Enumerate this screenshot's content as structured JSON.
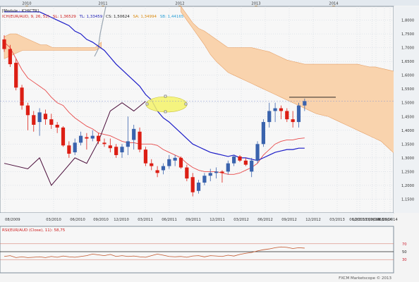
{
  "colors": {
    "background": "#f4f4f4",
    "grid": "#c8d2dc",
    "candle_up": "#3a63ad",
    "candle_down": "#dc1e14",
    "cloud_fill": "#f9d3ad",
    "cloud_edge": "#e6a26a",
    "tenkan": "#e84a4a",
    "kijun": "#1c1cc8",
    "chikou": "#4a0d3a",
    "senkou_a_text": "#d98a10",
    "senkou_b_text": "#2a9fd6",
    "rsi_line": "#c2552a",
    "rsi_level": "#d26c5a",
    "highlight": "#f5f36a"
  },
  "main_legend": {
    "module": "[Module : ICHICTR]",
    "indicator": "ICH(EUR/AUD, 9, 26, 52)",
    "sl": "SL: 1,36529",
    "tl": "TL: 1,33459",
    "cs": "CS: 1,50624",
    "sa": "SA: 1,34994",
    "sb": "SB: 1,44165"
  },
  "rsi_legend": "RSI(EUR/AUD (Close), 11): 58,75",
  "watermark": "FXCM Marketscope © 2013",
  "current_price_label": "1,50624",
  "chart_data": [
    {
      "type": "candlestick",
      "instrument": "EUR/AUD",
      "ylim": [
        1.1,
        1.85
      ],
      "y_ticks": [
        "1,8000",
        "1,7500",
        "1,7000",
        "1,6500",
        "1,6000",
        "1,5500",
        "1,5000",
        "1,4500",
        "1,4000",
        "1,3500",
        "1,3000",
        "1,2500",
        "1,2000",
        "1,1500"
      ],
      "x_ticks": [
        "08/2009",
        "03/2010",
        "06/2010",
        "09/2010",
        "12/2010",
        "03/2011",
        "06/2011",
        "09/2011",
        "12/2011",
        "03/2012",
        "06/2012",
        "09/2012",
        "12/2012",
        "03/2013",
        "06/2013",
        "09/2013",
        "12/2013",
        "03/2014",
        "06/2014",
        "09/2014"
      ],
      "year_labels": [
        "2010",
        "2011",
        "2012",
        "2013",
        "2014"
      ],
      "candles": [
        {
          "o": 1.73,
          "h": 1.745,
          "l": 1.685,
          "c": 1.695
        },
        {
          "o": 1.695,
          "h": 1.71,
          "l": 1.63,
          "c": 1.64
        },
        {
          "o": 1.645,
          "h": 1.66,
          "l": 1.545,
          "c": 1.555
        },
        {
          "o": 1.555,
          "h": 1.565,
          "l": 1.475,
          "c": 1.49
        },
        {
          "o": 1.49,
          "h": 1.5,
          "l": 1.4,
          "c": 1.455
        },
        {
          "o": 1.455,
          "h": 1.47,
          "l": 1.395,
          "c": 1.42
        },
        {
          "o": 1.43,
          "h": 1.48,
          "l": 1.38,
          "c": 1.465
        },
        {
          "o": 1.46,
          "h": 1.475,
          "l": 1.42,
          "c": 1.44
        },
        {
          "o": 1.44,
          "h": 1.46,
          "l": 1.405,
          "c": 1.42
        },
        {
          "o": 1.42,
          "h": 1.43,
          "l": 1.39,
          "c": 1.41
        },
        {
          "o": 1.41,
          "h": 1.415,
          "l": 1.34,
          "c": 1.345
        },
        {
          "o": 1.345,
          "h": 1.36,
          "l": 1.3,
          "c": 1.315
        },
        {
          "o": 1.32,
          "h": 1.37,
          "l": 1.31,
          "c": 1.355
        },
        {
          "o": 1.355,
          "h": 1.395,
          "l": 1.345,
          "c": 1.38
        },
        {
          "o": 1.375,
          "h": 1.39,
          "l": 1.33,
          "c": 1.37
        },
        {
          "o": 1.37,
          "h": 1.4,
          "l": 1.36,
          "c": 1.38
        },
        {
          "o": 1.38,
          "h": 1.39,
          "l": 1.35,
          "c": 1.36
        },
        {
          "o": 1.355,
          "h": 1.37,
          "l": 1.34,
          "c": 1.35
        },
        {
          "o": 1.345,
          "h": 1.37,
          "l": 1.32,
          "c": 1.335
        },
        {
          "o": 1.34,
          "h": 1.35,
          "l": 1.3,
          "c": 1.31
        },
        {
          "o": 1.32,
          "h": 1.35,
          "l": 1.3,
          "c": 1.34
        },
        {
          "o": 1.34,
          "h": 1.45,
          "l": 1.31,
          "c": 1.36
        },
        {
          "o": 1.365,
          "h": 1.42,
          "l": 1.33,
          "c": 1.405
        },
        {
          "o": 1.395,
          "h": 1.41,
          "l": 1.32,
          "c": 1.33
        },
        {
          "o": 1.33,
          "h": 1.34,
          "l": 1.27,
          "c": 1.28
        },
        {
          "o": 1.28,
          "h": 1.295,
          "l": 1.255,
          "c": 1.27
        },
        {
          "o": 1.255,
          "h": 1.27,
          "l": 1.23,
          "c": 1.245
        },
        {
          "o": 1.255,
          "h": 1.28,
          "l": 1.24,
          "c": 1.27
        },
        {
          "o": 1.27,
          "h": 1.31,
          "l": 1.26,
          "c": 1.295
        },
        {
          "o": 1.29,
          "h": 1.31,
          "l": 1.27,
          "c": 1.3
        },
        {
          "o": 1.3,
          "h": 1.305,
          "l": 1.26,
          "c": 1.265
        },
        {
          "o": 1.265,
          "h": 1.275,
          "l": 1.215,
          "c": 1.225
        },
        {
          "o": 1.23,
          "h": 1.245,
          "l": 1.16,
          "c": 1.175
        },
        {
          "o": 1.18,
          "h": 1.22,
          "l": 1.17,
          "c": 1.21
        },
        {
          "o": 1.21,
          "h": 1.245,
          "l": 1.2,
          "c": 1.235
        },
        {
          "o": 1.235,
          "h": 1.26,
          "l": 1.215,
          "c": 1.245
        },
        {
          "o": 1.245,
          "h": 1.265,
          "l": 1.225,
          "c": 1.25
        },
        {
          "o": 1.25,
          "h": 1.255,
          "l": 1.21,
          "c": 1.245
        },
        {
          "o": 1.25,
          "h": 1.29,
          "l": 1.24,
          "c": 1.28
        },
        {
          "o": 1.28,
          "h": 1.31,
          "l": 1.27,
          "c": 1.305
        },
        {
          "o": 1.305,
          "h": 1.31,
          "l": 1.285,
          "c": 1.29
        },
        {
          "o": 1.29,
          "h": 1.3,
          "l": 1.27,
          "c": 1.275
        },
        {
          "o": 1.25,
          "h": 1.3,
          "l": 1.23,
          "c": 1.29
        },
        {
          "o": 1.29,
          "h": 1.36,
          "l": 1.28,
          "c": 1.35
        },
        {
          "o": 1.35,
          "h": 1.44,
          "l": 1.34,
          "c": 1.43
        },
        {
          "o": 1.43,
          "h": 1.5,
          "l": 1.41,
          "c": 1.47
        },
        {
          "o": 1.47,
          "h": 1.5,
          "l": 1.43,
          "c": 1.48
        },
        {
          "o": 1.48,
          "h": 1.49,
          "l": 1.44,
          "c": 1.47
        },
        {
          "o": 1.47,
          "h": 1.48,
          "l": 1.43,
          "c": 1.44
        },
        {
          "o": 1.44,
          "h": 1.47,
          "l": 1.41,
          "c": 1.43
        },
        {
          "o": 1.43,
          "h": 1.5,
          "l": 1.41,
          "c": 1.49
        },
        {
          "o": 1.49,
          "h": 1.515,
          "l": 1.47,
          "c": 1.506
        }
      ],
      "series": [
        {
          "key": "tenkan",
          "values": [
            1.72,
            1.7,
            1.66,
            1.62,
            1.59,
            1.575,
            1.56,
            1.545,
            1.52,
            1.5,
            1.49,
            1.465,
            1.445,
            1.43,
            1.415,
            1.405,
            1.39,
            1.385,
            1.38,
            1.37,
            1.36,
            1.355,
            1.355,
            1.35,
            1.35,
            1.35,
            1.345,
            1.33,
            1.32,
            1.31,
            1.3,
            1.28,
            1.265,
            1.255,
            1.25,
            1.25,
            1.25,
            1.245,
            1.24,
            1.24,
            1.245,
            1.255,
            1.265,
            1.28,
            1.31,
            1.33,
            1.35,
            1.36,
            1.365,
            1.365,
            1.37,
            1.372
          ]
        },
        {
          "key": "kijun",
          "values": [
            1.83,
            1.83,
            1.83,
            1.83,
            1.83,
            1.83,
            1.83,
            1.82,
            1.81,
            1.8,
            1.79,
            1.78,
            1.76,
            1.75,
            1.73,
            1.72,
            1.705,
            1.69,
            1.665,
            1.64,
            1.62,
            1.6,
            1.58,
            1.56,
            1.53,
            1.51,
            1.47,
            1.445,
            1.43,
            1.41,
            1.39,
            1.37,
            1.35,
            1.34,
            1.33,
            1.32,
            1.315,
            1.31,
            1.305,
            1.31,
            1.3,
            1.3,
            1.295,
            1.29,
            1.3,
            1.31,
            1.32,
            1.325,
            1.33,
            1.33,
            1.335,
            1.335
          ]
        },
        {
          "key": "chikou",
          "values": [
            null,
            null,
            null,
            null,
            null,
            null,
            null,
            null,
            null,
            null,
            null,
            null,
            null,
            null,
            null,
            null,
            null,
            null,
            null,
            null,
            null,
            null,
            null,
            null,
            null,
            null,
            null,
            null,
            null,
            null,
            null,
            null,
            null,
            null,
            null,
            null,
            null,
            null,
            null,
            null,
            null,
            null,
            null,
            null,
            null,
            null,
            null,
            null,
            null,
            null,
            null,
            null
          ]
        }
      ],
      "chikou_points": [
        [
          0,
          1.28
        ],
        [
          4,
          1.26
        ],
        [
          6,
          1.3
        ],
        [
          8,
          1.2
        ],
        [
          10,
          1.25
        ],
        [
          12,
          1.3
        ],
        [
          14,
          1.28
        ],
        [
          16,
          1.36
        ],
        [
          18,
          1.47
        ],
        [
          20,
          1.5
        ],
        [
          22,
          1.47
        ],
        [
          24,
          1.505
        ]
      ],
      "cloud": {
        "start_index": 22,
        "upper": [
          1.85,
          1.82,
          1.79,
          1.77,
          1.76,
          1.745,
          1.73,
          1.715,
          1.7,
          1.7,
          1.7,
          1.7,
          1.7,
          1.695,
          1.69,
          1.685,
          1.675,
          1.665,
          1.655,
          1.65,
          1.645,
          1.64,
          1.64,
          1.64,
          1.64,
          1.64,
          1.64,
          1.64,
          1.64,
          1.64,
          1.64,
          1.635,
          1.63,
          1.63,
          1.625,
          1.62,
          1.615,
          1.61,
          1.6,
          1.58
        ],
        "lower": [
          1.83,
          1.8,
          1.77,
          1.74,
          1.71,
          1.675,
          1.65,
          1.63,
          1.61,
          1.6,
          1.59,
          1.58,
          1.57,
          1.56,
          1.55,
          1.54,
          1.53,
          1.52,
          1.51,
          1.5,
          1.49,
          1.48,
          1.47,
          1.46,
          1.455,
          1.45,
          1.44,
          1.43,
          1.42,
          1.41,
          1.4,
          1.39,
          1.38,
          1.37,
          1.36,
          1.34,
          1.32,
          1.31,
          1.3,
          1.295
        ]
      },
      "left_cloud": {
        "upper": [
          1.74,
          1.75,
          1.75,
          1.74,
          1.73,
          1.72,
          1.71,
          1.71,
          1.7,
          1.7,
          1.7,
          1.7,
          1.7,
          1.7,
          1.7,
          1.7,
          1.72
        ],
        "lower": [
          1.66,
          1.67,
          1.68,
          1.69,
          1.69,
          1.69,
          1.69,
          1.69,
          1.69,
          1.69,
          1.69,
          1.69,
          1.69,
          1.69,
          1.69,
          1.69,
          1.7
        ]
      }
    },
    {
      "type": "line",
      "title": "RSI(EUR/AUD (Close), 11): 58,75",
      "ylim": [
        0,
        100
      ],
      "levels": [
        30,
        50,
        70
      ],
      "y_ticks": [
        "70",
        "50",
        "30"
      ],
      "values": [
        38,
        40,
        35,
        37,
        35,
        36,
        37,
        35,
        38,
        36,
        39,
        37,
        36,
        38,
        40,
        44,
        42,
        40,
        43,
        38,
        40,
        38,
        39,
        37,
        36,
        40,
        44,
        41,
        38,
        37,
        38,
        36,
        39,
        40,
        37,
        40,
        39,
        38,
        41,
        39,
        43,
        46,
        48,
        52,
        55,
        57,
        60,
        62,
        61,
        58,
        60,
        59
      ]
    }
  ]
}
